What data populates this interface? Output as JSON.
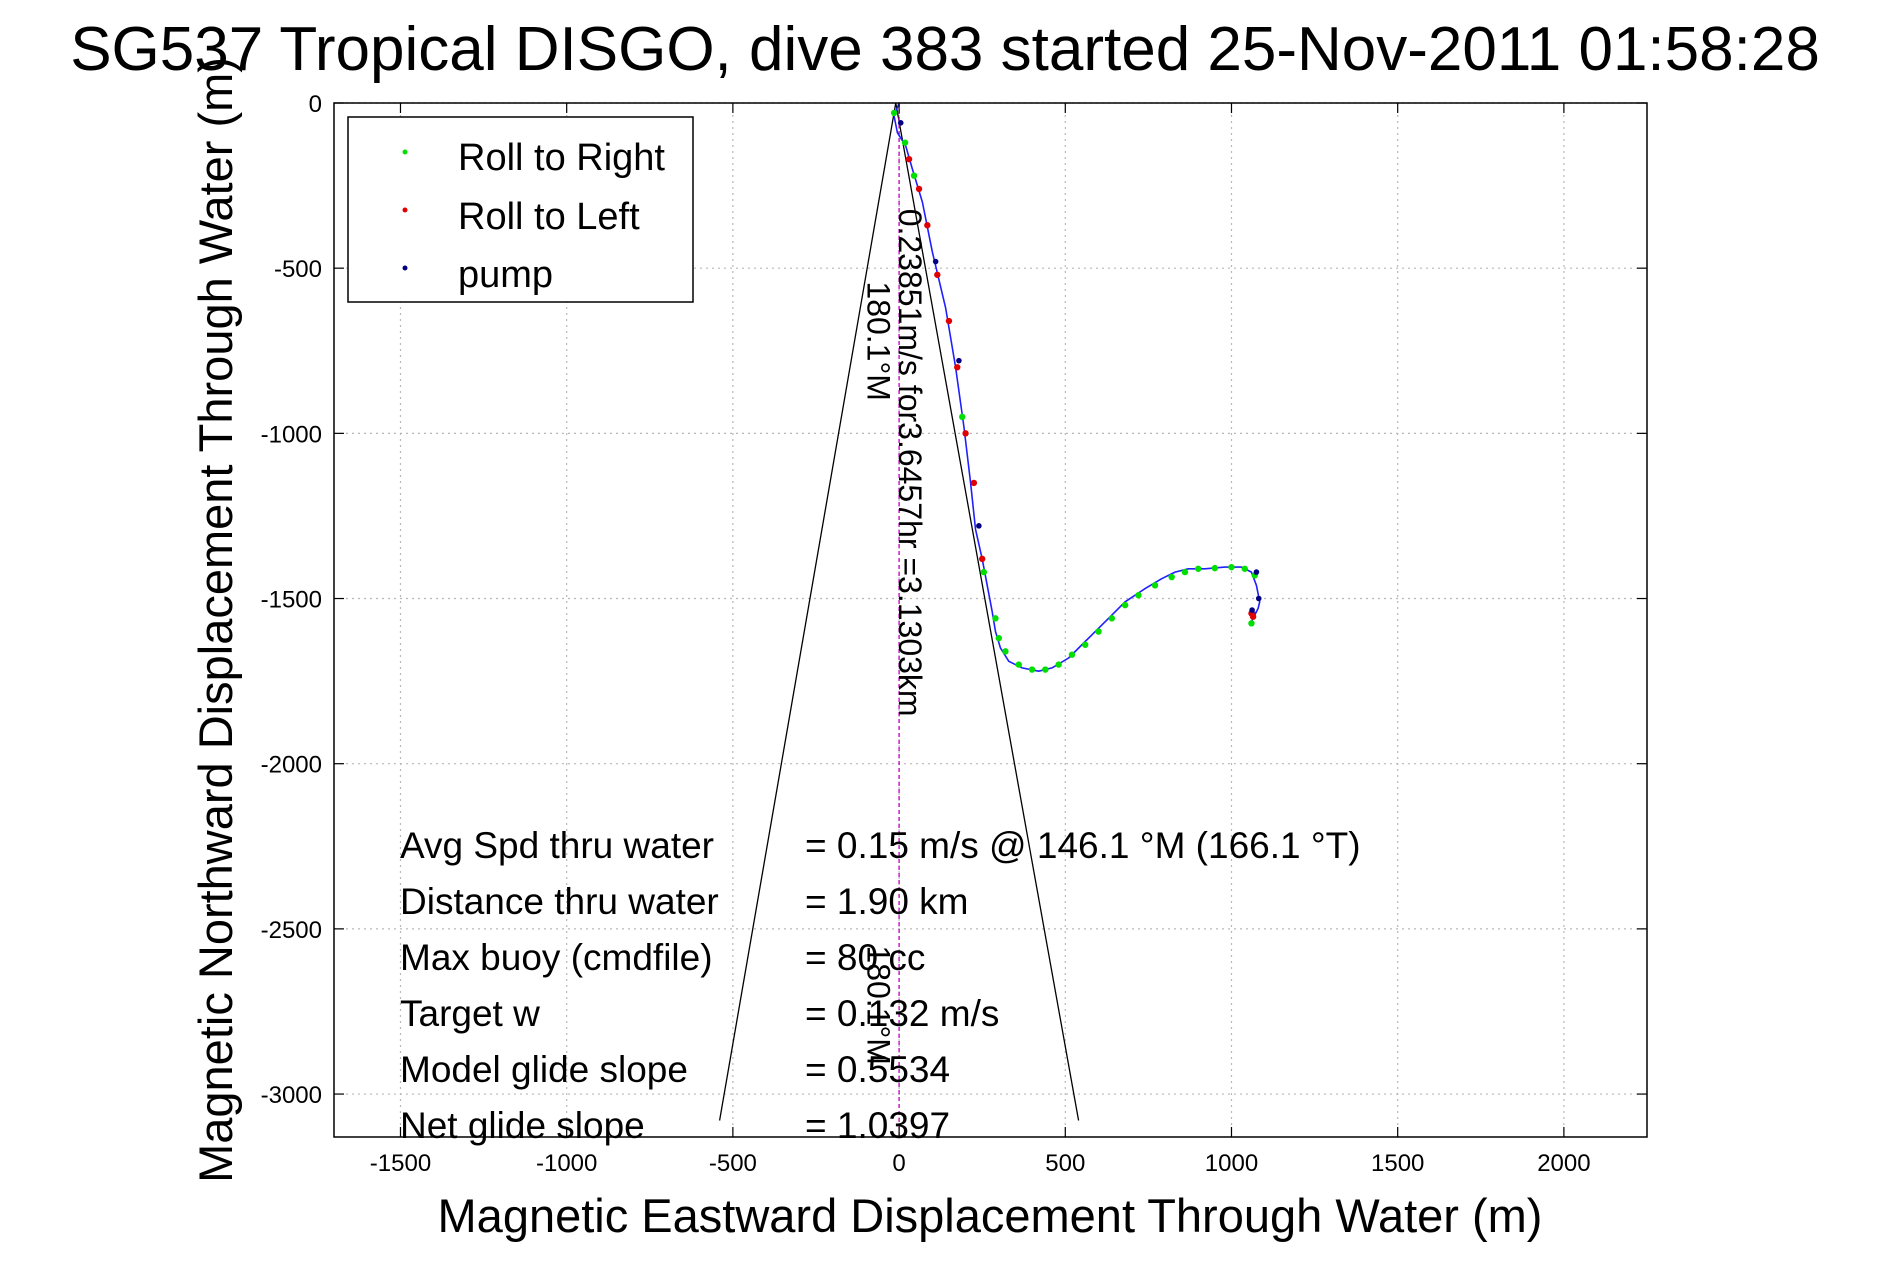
{
  "chart_data": {
    "type": "line",
    "title": "SG537 Tropical DISGO, dive 383 started 25-Nov-2011 01:58:28",
    "xlabel": "Magnetic Eastward Displacement Through Water (m)",
    "ylabel": "Magnetic Northward Displacement Through Water (m)",
    "xlim": [
      -1700,
      2250
    ],
    "ylim": [
      -3130,
      0
    ],
    "xticks": [
      -1500,
      -1000,
      -500,
      0,
      500,
      1000,
      1500,
      2000
    ],
    "yticks": [
      0,
      -500,
      -1000,
      -1500,
      -2000,
      -2500,
      -3000
    ],
    "grid": true,
    "legend_position": "top-left",
    "legend": [
      {
        "label": "Roll to Right",
        "color": "#00e000"
      },
      {
        "label": "Roll to Left",
        "color": "#e00000"
      },
      {
        "label": "pump",
        "color": "#000080"
      }
    ],
    "track": {
      "name": "glider track",
      "color": "#2020ff",
      "x": [
        0,
        -15,
        -5,
        20,
        40,
        70,
        100,
        140,
        170,
        195,
        215,
        230,
        250,
        265,
        280,
        290,
        305,
        330,
        370,
        420,
        460,
        510,
        560,
        620,
        680,
        740,
        790,
        830,
        870,
        920,
        980,
        1030,
        1060,
        1075,
        1085,
        1080,
        1070,
        1060,
        1065,
        1070
      ],
      "y": [
        0,
        -40,
        -90,
        -130,
        -200,
        -300,
        -450,
        -620,
        -800,
        -980,
        -1150,
        -1290,
        -1380,
        -1460,
        -1540,
        -1600,
        -1650,
        -1690,
        -1710,
        -1720,
        -1710,
        -1680,
        -1630,
        -1570,
        -1510,
        -1470,
        -1440,
        -1420,
        -1410,
        -1410,
        -1405,
        -1405,
        -1420,
        -1460,
        -1510,
        -1530,
        -1550,
        -1570,
        -1560,
        -1540
      ]
    },
    "markers": {
      "roll_right": {
        "x": [
          -15,
          18,
          45,
          190,
          255,
          290,
          300,
          320,
          360,
          400,
          440,
          480,
          520,
          560,
          600,
          640,
          680,
          720,
          770,
          820,
          860,
          900,
          950,
          1000,
          1040,
          1070,
          1060
        ],
        "y": [
          -30,
          -120,
          -220,
          -950,
          -1420,
          -1560,
          -1620,
          -1660,
          -1700,
          -1715,
          -1715,
          -1700,
          -1670,
          -1640,
          -1600,
          -1560,
          -1520,
          -1490,
          -1460,
          -1435,
          -1420,
          -1410,
          -1408,
          -1405,
          -1410,
          -1430,
          -1575
        ]
      },
      "roll_left": {
        "x": [
          30,
          60,
          85,
          115,
          150,
          175,
          200,
          225,
          250,
          1060,
          1065
        ],
        "y": [
          -170,
          -260,
          -370,
          -520,
          -660,
          -800,
          -1000,
          -1150,
          -1380,
          -1545,
          -1555
        ]
      },
      "pump": {
        "x": [
          5,
          110,
          180,
          240,
          1075,
          1082,
          1062
        ],
        "y": [
          -60,
          -480,
          -780,
          -1280,
          -1420,
          -1500,
          -1535
        ]
      }
    },
    "depth_line": {
      "x": [
        0,
        0
      ],
      "y": [
        0,
        -3130
      ],
      "color": "#c000c0"
    },
    "cone": {
      "apex": [
        -10,
        0
      ],
      "left_end": [
        -540,
        -3080
      ],
      "right_end": [
        540,
        -3080
      ]
    },
    "annotations": [
      {
        "text": "0.23851m/s for3.6457hr =3.1303km",
        "anchor": [
          0,
          -320
        ],
        "rotation_deg": 90
      },
      {
        "text": "180.1°M",
        "anchor": [
          -95,
          -540
        ],
        "rotation_deg": 90
      },
      {
        "text": "180.1°M",
        "anchor": [
          -95,
          -2550
        ],
        "rotation_deg": 90
      }
    ],
    "stats": [
      {
        "label": "Avg Spd thru water",
        "value": "=  0.15 m/s @ 146.1 °M (166.1 °T)"
      },
      {
        "label": "Distance thru water",
        "value": "=  1.90 km"
      },
      {
        "label": "Max buoy (cmdfile)",
        "value": "= 80 cc"
      },
      {
        "label": "Target w",
        "value": "= 0.132 m/s"
      },
      {
        "label": "Model glide slope",
        "value": "= 0.5534"
      },
      {
        "label": "Net glide slope",
        "value": "= 1.0397"
      }
    ]
  }
}
